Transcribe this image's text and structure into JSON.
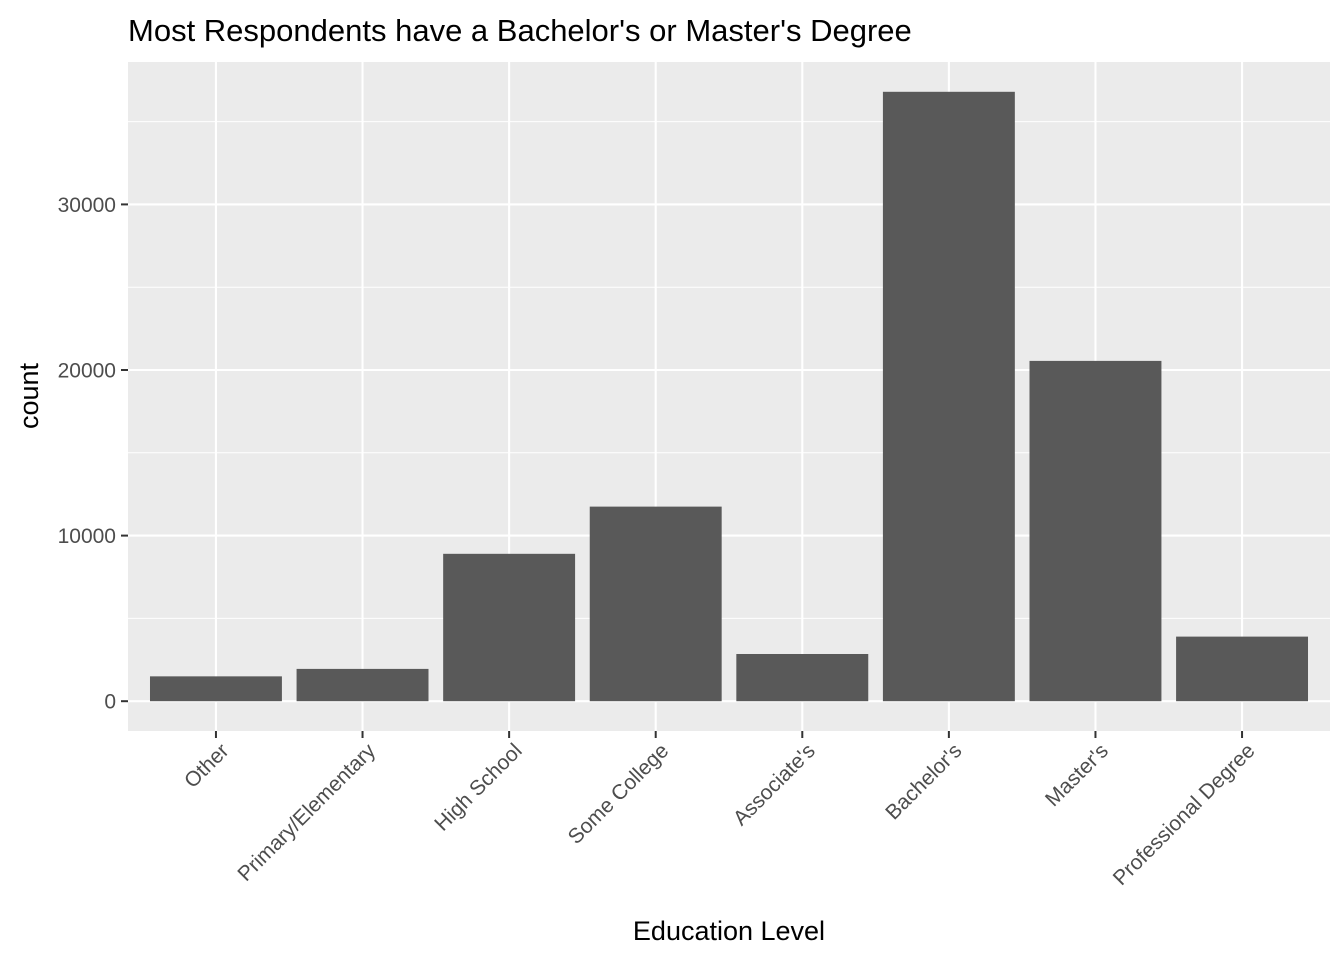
{
  "chart_data": {
    "type": "bar",
    "title": "Most Respondents have a Bachelor's or Master's Degree",
    "xlabel": "Education Level",
    "ylabel": "count",
    "categories": [
      "Other",
      "Primary/Elementary",
      "High School",
      "Some College",
      "Associate's",
      "Bachelor's",
      "Master's",
      "Professional Degree"
    ],
    "values": [
      1500,
      1950,
      8900,
      11750,
      2850,
      36800,
      20550,
      3900
    ],
    "ylim": [
      -1800,
      38600
    ],
    "yticks": [
      0,
      10000,
      20000,
      30000
    ],
    "ytick_labels": [
      "0",
      "10000",
      "20000",
      "30000"
    ],
    "grid": true,
    "legend": "none",
    "colors": {
      "bar": "#595959",
      "panel": "#ebebeb",
      "grid": "#ffffff",
      "tick_text": "#4d4d4d",
      "tick_mark": "#333333"
    }
  }
}
